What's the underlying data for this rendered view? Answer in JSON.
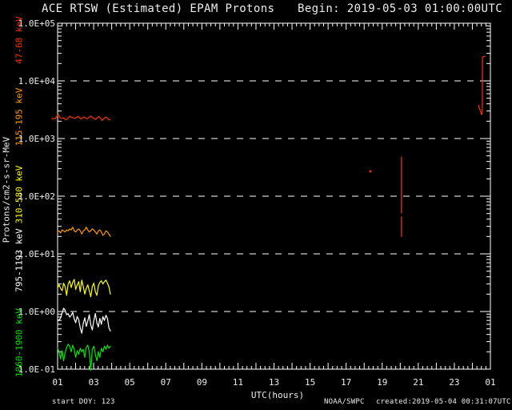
{
  "header": {
    "title": "ACE RTSW (Estimated) EPAM Protons",
    "begin_label": "Begin: 2019-05-03 01:00:00UTC"
  },
  "footer": {
    "start_doy_label": "start DOY:  123",
    "agency": "NOAA/SWPC",
    "created_label": "created:2019-05-04 00:31:07UTC"
  },
  "colors": {
    "background": "#000000",
    "frame_and_text": "#ececec",
    "channel_47_68": "#ff3300",
    "channel_115_195": "#ff9900",
    "channel_310_580": "#ffff00",
    "channel_795_1193": "#ffffff",
    "channel_1060_1900": "#00e800"
  },
  "chart_data": {
    "type": "line",
    "title": "ACE RTSW (Estimated) EPAM Protons",
    "subtitle": "Begin: 2019-05-03 01:00:00UTC",
    "xlabel": "UTC(hours)",
    "ylabel": "Protons/cm2-s-sr-MeV",
    "y_scale": "log",
    "x_range_hours": [
      1,
      25
    ],
    "y_range": [
      0.1,
      100000
    ],
    "grid": "horizontal white dashed lines at each decade 1.0E+00 through 1.0E+04; tick marks on all four frame sides",
    "legend_position": "rotated channel labels along left axis",
    "x_tick_labels": [
      "01",
      "03",
      "05",
      "07",
      "09",
      "11",
      "13",
      "15",
      "17",
      "19",
      "21",
      "23",
      "01"
    ],
    "x_tick_hours": [
      1,
      3,
      5,
      7,
      9,
      11,
      13,
      15,
      17,
      19,
      21,
      23,
      25
    ],
    "y_tick_labels": [
      "1.0E+05",
      "1.0E+04",
      "1.0E+03",
      "1.0E+02",
      "1.0E+01",
      "1.0E+00",
      "1.0E-01"
    ],
    "y_tick_values": [
      100000,
      10000,
      1000,
      100,
      10,
      1,
      0.1
    ],
    "channels": [
      {
        "label": "47-68 keV",
        "color": "#ff3300"
      },
      {
        "label": "115-195 keV",
        "color": "#ff9900"
      },
      {
        "label": "310-580 keV",
        "color": "#ffff00"
      },
      {
        "label": "795-1193 keV",
        "color": "#ffffff"
      },
      {
        "label": "1060-1900 keV",
        "color": "#00e800"
      }
    ],
    "series": [
      {
        "name": "47-68 keV",
        "color": "#ff3300",
        "x_start": 0.68,
        "x_step": 0.09,
        "values": [
          2210,
          2215,
          2205,
          2400,
          2600,
          2320,
          2230,
          2300,
          2180,
          2120,
          2260,
          2440,
          2350,
          2290,
          2240,
          2300,
          2420,
          2310,
          2190,
          2300,
          2360,
          2240,
          2200,
          2350,
          2460,
          2300,
          2240,
          2140,
          2300,
          2410,
          2260,
          2060,
          2200,
          2360,
          2300,
          2140,
          2090
        ]
      },
      {
        "name": "115-195 keV",
        "color": "#ff9900",
        "x_start": 1.0,
        "x_step": 0.0837,
        "values": [
          24,
          25,
          23,
          26,
          25,
          24,
          26,
          25,
          27,
          26,
          29,
          25,
          24,
          26,
          27,
          25,
          22,
          25,
          26,
          29,
          26,
          24,
          25,
          27,
          26,
          24,
          22,
          25,
          26,
          24,
          21,
          22,
          25,
          24,
          22,
          20
        ]
      },
      {
        "name": "310-580 keV",
        "color": "#ffff00",
        "x_start": 1.0,
        "x_step": 0.0837,
        "values": [
          2.6,
          2.9,
          2.5,
          2.3,
          3.1,
          2.7,
          1.9,
          3.0,
          3.4,
          2.6,
          3.2,
          3.6,
          2.4,
          2.9,
          3.3,
          2.2,
          3.5,
          2.7,
          2.0,
          2.5,
          2.9,
          2.3,
          1.8,
          2.7,
          3.1,
          2.2,
          1.9,
          2.8,
          3.2,
          3.4,
          3.0,
          3.3,
          3.5,
          3.1,
          2.7,
          2.0
        ]
      },
      {
        "name": "795-1193 keV",
        "color": "#ffffff",
        "x_start": 1.0,
        "x_step": 0.0837,
        "values": [
          0.72,
          0.7,
          0.78,
          0.95,
          1.14,
          1.05,
          0.88,
          0.92,
          0.8,
          0.86,
          0.96,
          0.74,
          0.64,
          0.82,
          0.72,
          0.52,
          0.42,
          0.62,
          0.78,
          0.55,
          0.68,
          0.88,
          0.58,
          0.48,
          0.7,
          0.92,
          0.64,
          0.54,
          0.76,
          0.6,
          0.82,
          0.7,
          0.86,
          0.76,
          0.52,
          0.46
        ]
      },
      {
        "name": "1060-1900 keV",
        "color": "#00e800",
        "x_start": 1.0,
        "x_step": 0.0837,
        "values": [
          0.23,
          0.2,
          0.15,
          0.21,
          0.14,
          0.19,
          0.24,
          0.27,
          0.25,
          0.2,
          0.26,
          0.22,
          0.16,
          0.21,
          0.18,
          0.23,
          0.2,
          0.22,
          0.16,
          0.24,
          0.26,
          0.2,
          0.095,
          0.22,
          0.25,
          0.18,
          0.14,
          0.2,
          0.16,
          0.23,
          0.2,
          0.25,
          0.22,
          0.26,
          0.23,
          0.25
        ]
      },
      {
        "name": "vertical spike ~20:04 UTC (upper segment)",
        "color": "#ff3300",
        "points": [
          [
            20.07,
            478
          ],
          [
            20.07,
            51
          ]
        ]
      },
      {
        "name": "vertical spike ~20:04 UTC (lower segment)",
        "color": "#ff3300",
        "points": [
          [
            20.07,
            44
          ],
          [
            20.07,
            20
          ]
        ]
      },
      {
        "name": "isolated point ~18:21 UTC",
        "color": "#ff3300",
        "marker": "point",
        "points": [
          [
            18.35,
            270
          ]
        ]
      },
      {
        "name": "end-of-plot spike ~00:35 UTC",
        "color": "#ff3300",
        "points": [
          [
            24.34,
            3800
          ],
          [
            24.51,
            2600
          ],
          [
            24.55,
            2800
          ],
          [
            24.56,
            26000
          ],
          [
            24.7,
            26800
          ]
        ]
      }
    ]
  }
}
